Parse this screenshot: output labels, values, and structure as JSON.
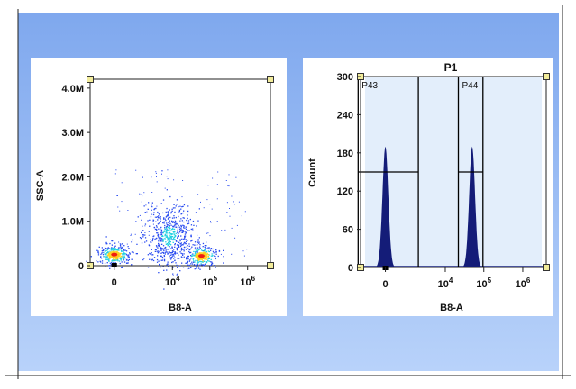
{
  "colors": {
    "frame_gradient_top": "#7fa8ee",
    "frame_gradient_bottom": "#b8d2fa",
    "panel_bg": "#ffffff",
    "gate_fill": "#e3eefb",
    "histogram_fill": "#141c78",
    "gate_handle": "#f2ec9a",
    "density_low": "#2a4cf0",
    "density_mid": "#22d0e0",
    "density_high": "#ffd21e",
    "density_peak": "#f01c10"
  },
  "chart_data": [
    {
      "type": "scatter",
      "title": "",
      "xlabel": "B8-A",
      "ylabel": "SSC-A",
      "x_scale": "biexponential",
      "x_ticks": [
        {
          "value": 0,
          "label": "0",
          "exp": ""
        },
        {
          "value": 10000,
          "label": "10",
          "exp": "4"
        },
        {
          "value": 100000,
          "label": "10",
          "exp": "5"
        },
        {
          "value": 1000000,
          "label": "10",
          "exp": "6"
        }
      ],
      "y_ticks": [
        {
          "value": 0,
          "label": "0"
        },
        {
          "value": 1000000,
          "label": "1.0M"
        },
        {
          "value": 2000000,
          "label": "2.0M"
        },
        {
          "value": 3000000,
          "label": "3.0M"
        },
        {
          "value": 4000000,
          "label": "4.0M"
        }
      ],
      "ylim": [
        0,
        4200000
      ],
      "grid": false,
      "populations": [
        {
          "x_center": 0,
          "y_center": 250000,
          "count": 300,
          "density": "high"
        },
        {
          "x_center": 8000,
          "y_center": 680000,
          "count": 600,
          "density": "medium"
        },
        {
          "x_center": 60000,
          "y_center": 220000,
          "count": 250,
          "density": "high"
        }
      ]
    },
    {
      "type": "histogram",
      "title": "P1",
      "xlabel": "B8-A",
      "ylabel": "Count",
      "x_scale": "biexponential",
      "x_ticks": [
        {
          "value": 0,
          "label": "0",
          "exp": ""
        },
        {
          "value": 10000,
          "label": "10",
          "exp": "4"
        },
        {
          "value": 100000,
          "label": "10",
          "exp": "5"
        },
        {
          "value": 1000000,
          "label": "10",
          "exp": "6"
        }
      ],
      "y_ticks": [
        {
          "value": 0,
          "label": "0"
        },
        {
          "value": 60,
          "label": "60"
        },
        {
          "value": 120,
          "label": "120"
        },
        {
          "value": 180,
          "label": "180"
        },
        {
          "value": 240,
          "label": "240"
        },
        {
          "value": 300,
          "label": "300"
        }
      ],
      "ylim": [
        0,
        300
      ],
      "grid": false,
      "peaks": [
        {
          "x_center": 0,
          "height": 190
        },
        {
          "x_center": 50000,
          "height": 190
        }
      ],
      "gates": [
        {
          "name": "P43",
          "x_range": [
            -1200,
            1800
          ],
          "level": 150
        },
        {
          "name": "P44",
          "x_range": [
            22000,
            95000
          ],
          "level": 150
        }
      ]
    }
  ]
}
